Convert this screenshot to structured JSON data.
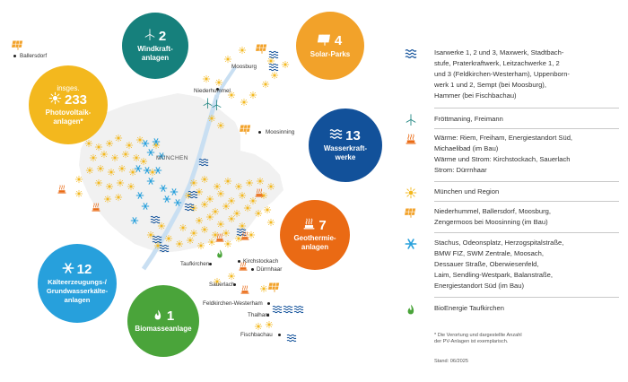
{
  "colors": {
    "wind": "#16807c",
    "solar": "#f2a22a",
    "pv": "#f3b81e",
    "hydro": "#12519a",
    "geo": "#ea6a14",
    "cold": "#27a0dc",
    "bio": "#4aa43a",
    "map_fill": "#f1f1f1",
    "river": "#c9dff2"
  },
  "stats": {
    "wind": {
      "number": "2",
      "label": "Windkraft-\nanlagen",
      "icon": "wind-turbine-icon"
    },
    "solar": {
      "number": "4",
      "label": "Solar-Parks",
      "icon": "solar-panel-icon"
    },
    "pv": {
      "prefix": "insges.",
      "number": "233",
      "label": "Photovoltaik-\nanlagen*",
      "icon": "sun-icon"
    },
    "hydro": {
      "number": "13",
      "label": "Wasserkraft-\nwerke",
      "icon": "waves-icon"
    },
    "geo": {
      "number": "7",
      "label": "Geothermie-\nanlagen",
      "icon": "geothermal-icon"
    },
    "cold": {
      "number": "12",
      "label": "Kälteerzeugungs-/\nGrundwasserkälte-\nanlagen",
      "icon": "snowflake-icon"
    },
    "bio": {
      "number": "1",
      "label": "Biomasseanlage",
      "icon": "flame-icon"
    }
  },
  "map": {
    "city_label": "MÜNCHEN",
    "places": [
      "Ballersdorf",
      "Moosburg",
      "Niederhummel",
      "Moosinning",
      "Taufkirchen",
      "Kirchstockach",
      "Dürrnhaar",
      "Sauerlach",
      "Feldkirchen-Westerham",
      "Thalham",
      "Fischbachau"
    ]
  },
  "legend": [
    {
      "icon": "waves-icon",
      "text": "Isarwerke 1, 2 und 3, Maxwerk, Stadtbach-\nstufe, Praterkraftwerk, Leitzachwerke 1, 2\nund 3 (Feldkirchen-Westerham), Uppenborn-\nwerk 1 und 2, Sempt (bei Moosburg),\nHammer (bei Fischbachau)"
    },
    {
      "icon": "wind-turbine-icon",
      "text": "Fröttmaning, Freimann"
    },
    {
      "icon": "geothermal-icon",
      "text": "Wärme: Riem, Freiham, Energiestandort Süd,\nMichaelibad (im Bau)\nWärme und Strom: Kirchstockach, Sauerlach\nStrom: Dürrnhaar"
    },
    {
      "icon": "sun-icon",
      "text": "München und Region"
    },
    {
      "icon": "solar-panel-icon",
      "text": "Niederhummel, Ballersdorf, Moosburg,\nZengermoos bei Moosinning (im Bau)"
    },
    {
      "icon": "snowflake-icon",
      "text": "Stachus, Odeonsplatz, Herzogspitalstraße,\nBMW FIZ, SWM Zentrale, Moosach,\nDessauer Straße, Oberwiesenfeld,\nLaim, Sendling-Westpark, Balanstraße,\nEnergiestandort Süd (im Bau)"
    },
    {
      "icon": "flame-icon",
      "text": "BioEnergie Taufkirchen"
    }
  ],
  "footnote": "* Die Verortung und dargestellte Anzahl\nder PV-Anlagen ist exemplarisch.",
  "stand": "Stand: 06/2025"
}
